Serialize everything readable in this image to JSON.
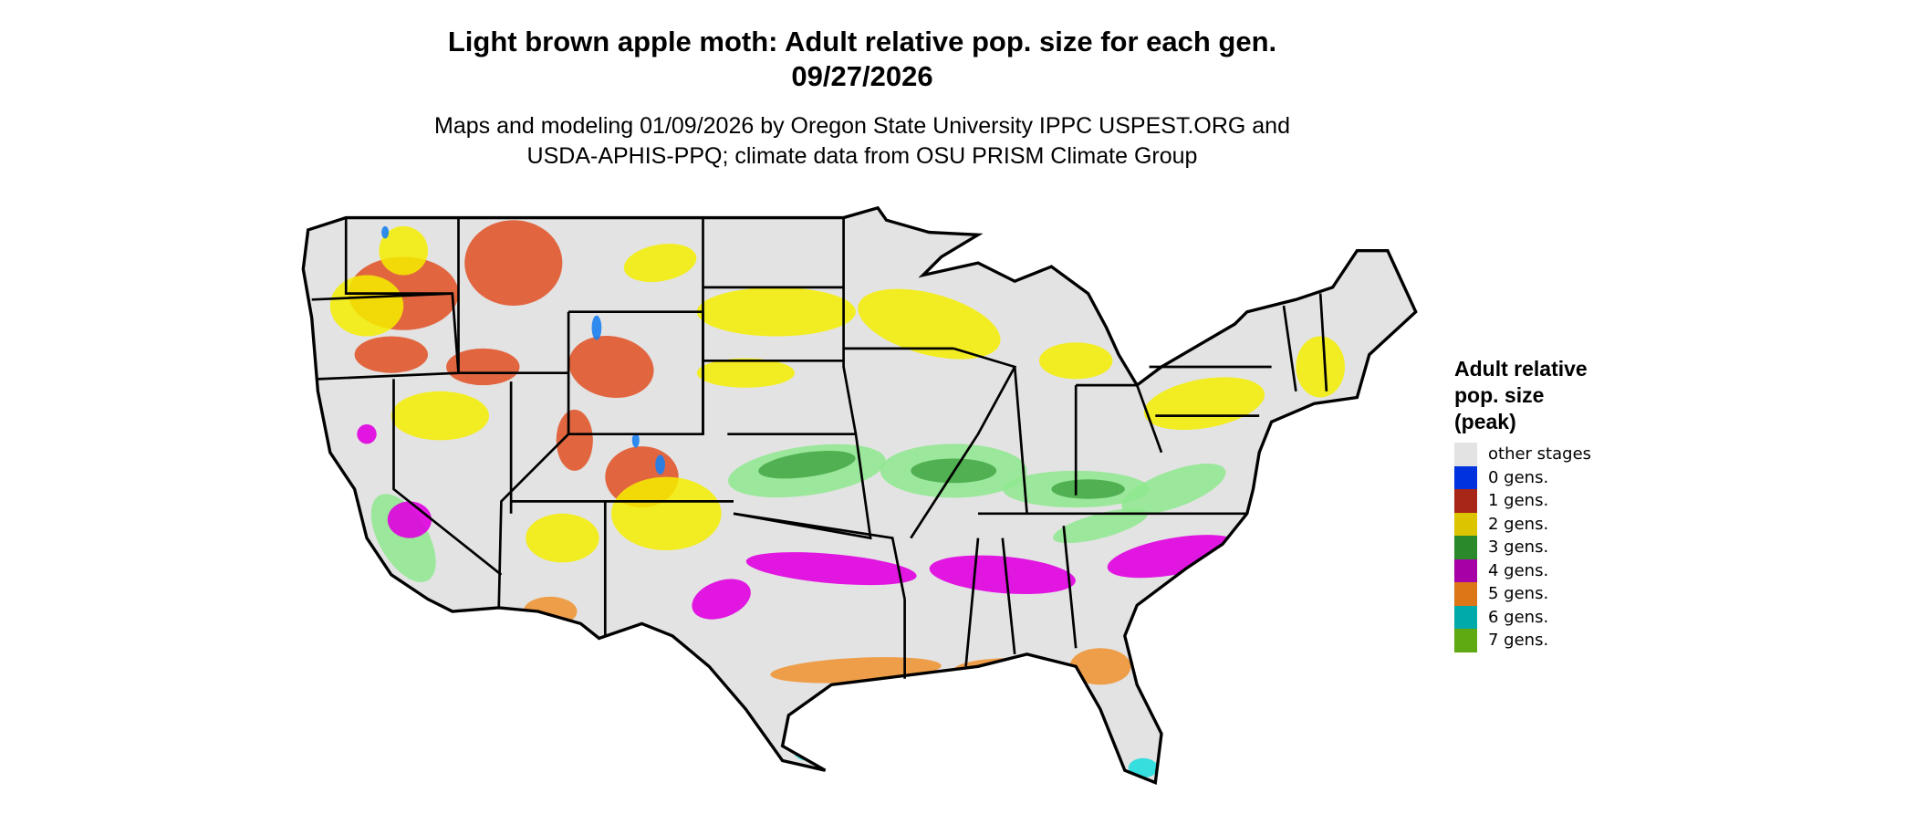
{
  "title": "Light brown apple moth: Adult relative pop. size for each gen.",
  "date": "09/27/2026",
  "subtitle_line1": "Maps and modeling 01/09/2026 by Oregon State University IPPC USPEST.ORG and",
  "subtitle_line2": "USDA-APHIS-PPQ; climate data from OSU PRISM Climate Group",
  "legend": {
    "title_lines": [
      "Adult relative",
      "pop. size",
      "(peak)"
    ],
    "items": [
      {
        "label": "other stages",
        "color": "#e3e3e3"
      },
      {
        "label": "0 gens.",
        "color": "#0033dd"
      },
      {
        "label": "1 gens.",
        "color": "#a82618"
      },
      {
        "label": "2 gens.",
        "color": "#dcc400"
      },
      {
        "label": "3 gens.",
        "color": "#2a8a2a"
      },
      {
        "label": "4 gens.",
        "color": "#a600a6"
      },
      {
        "label": "5 gens.",
        "color": "#dc7616"
      },
      {
        "label": "6 gens.",
        "color": "#00aaaa"
      },
      {
        "label": "7 gens.",
        "color": "#5faa12"
      }
    ]
  },
  "map_colors": {
    "background": "#e3e3e3",
    "border": "#000000",
    "gen0_speck": "#1a7ff0",
    "gen1_map": "#e03c0a",
    "gen2_map": "#f5ee00",
    "gen3_map": "#3fa33f",
    "gen3_light": "#8ee88e",
    "gen4_map": "#e000e0",
    "gen5_map": "#f0922e",
    "gen6_map": "#22dddd"
  }
}
